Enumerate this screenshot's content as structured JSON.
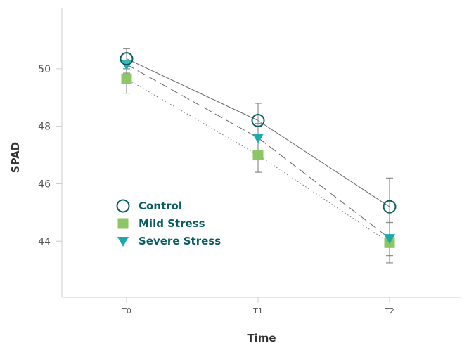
{
  "chart_data": {
    "type": "line",
    "xlabel": "Time",
    "ylabel": "SPAD",
    "categories": [
      "T0",
      "T1",
      "T2"
    ],
    "ylim": [
      42.05,
      52.1
    ],
    "yticks": [
      44,
      46,
      48,
      50
    ],
    "grid": false,
    "legend_position": "lower-left",
    "series": [
      {
        "name": "Control",
        "values": [
          50.35,
          48.2,
          45.2
        ],
        "errors": [
          0.35,
          0.6,
          1.0
        ],
        "marker": "circle-open",
        "line_style": "solid",
        "color": "#0a5e63"
      },
      {
        "name": "Mild Stress",
        "values": [
          49.65,
          47.0,
          43.95
        ],
        "errors": [
          0.5,
          0.6,
          0.7
        ],
        "marker": "square",
        "line_style": "dotted",
        "color": "#8cc665"
      },
      {
        "name": "Severe Stress",
        "values": [
          50.15,
          47.6,
          44.1
        ],
        "errors": [
          0.3,
          0.5,
          0.6
        ],
        "marker": "triangle-down",
        "line_style": "dashed",
        "color": "#1aa9ad"
      }
    ]
  }
}
